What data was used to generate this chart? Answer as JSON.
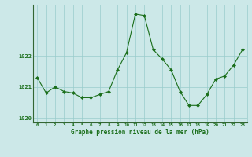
{
  "x": [
    0,
    1,
    2,
    3,
    4,
    5,
    6,
    7,
    8,
    9,
    10,
    11,
    12,
    13,
    14,
    15,
    16,
    17,
    18,
    19,
    20,
    21,
    22,
    23
  ],
  "y": [
    1021.3,
    1020.8,
    1021.0,
    1020.85,
    1020.8,
    1020.65,
    1020.65,
    1020.75,
    1020.85,
    1021.55,
    1022.1,
    1023.35,
    1023.3,
    1022.2,
    1021.9,
    1021.55,
    1020.85,
    1020.4,
    1020.4,
    1020.75,
    1021.25,
    1021.35,
    1021.7,
    1022.2
  ],
  "line_color": "#1a6e1a",
  "marker_color": "#1a6e1a",
  "bg_color": "#cce8e8",
  "grid_color": "#99cccc",
  "xlabel": "Graphe pression niveau de la mer (hPa)",
  "xlabel_color": "#1a6e1a",
  "tick_color": "#1a6e1a",
  "axis_color": "#336633",
  "ylim": [
    1019.85,
    1023.65
  ],
  "yticks": [
    1020,
    1021,
    1022
  ],
  "figsize": [
    3.2,
    2.0
  ],
  "dpi": 100
}
